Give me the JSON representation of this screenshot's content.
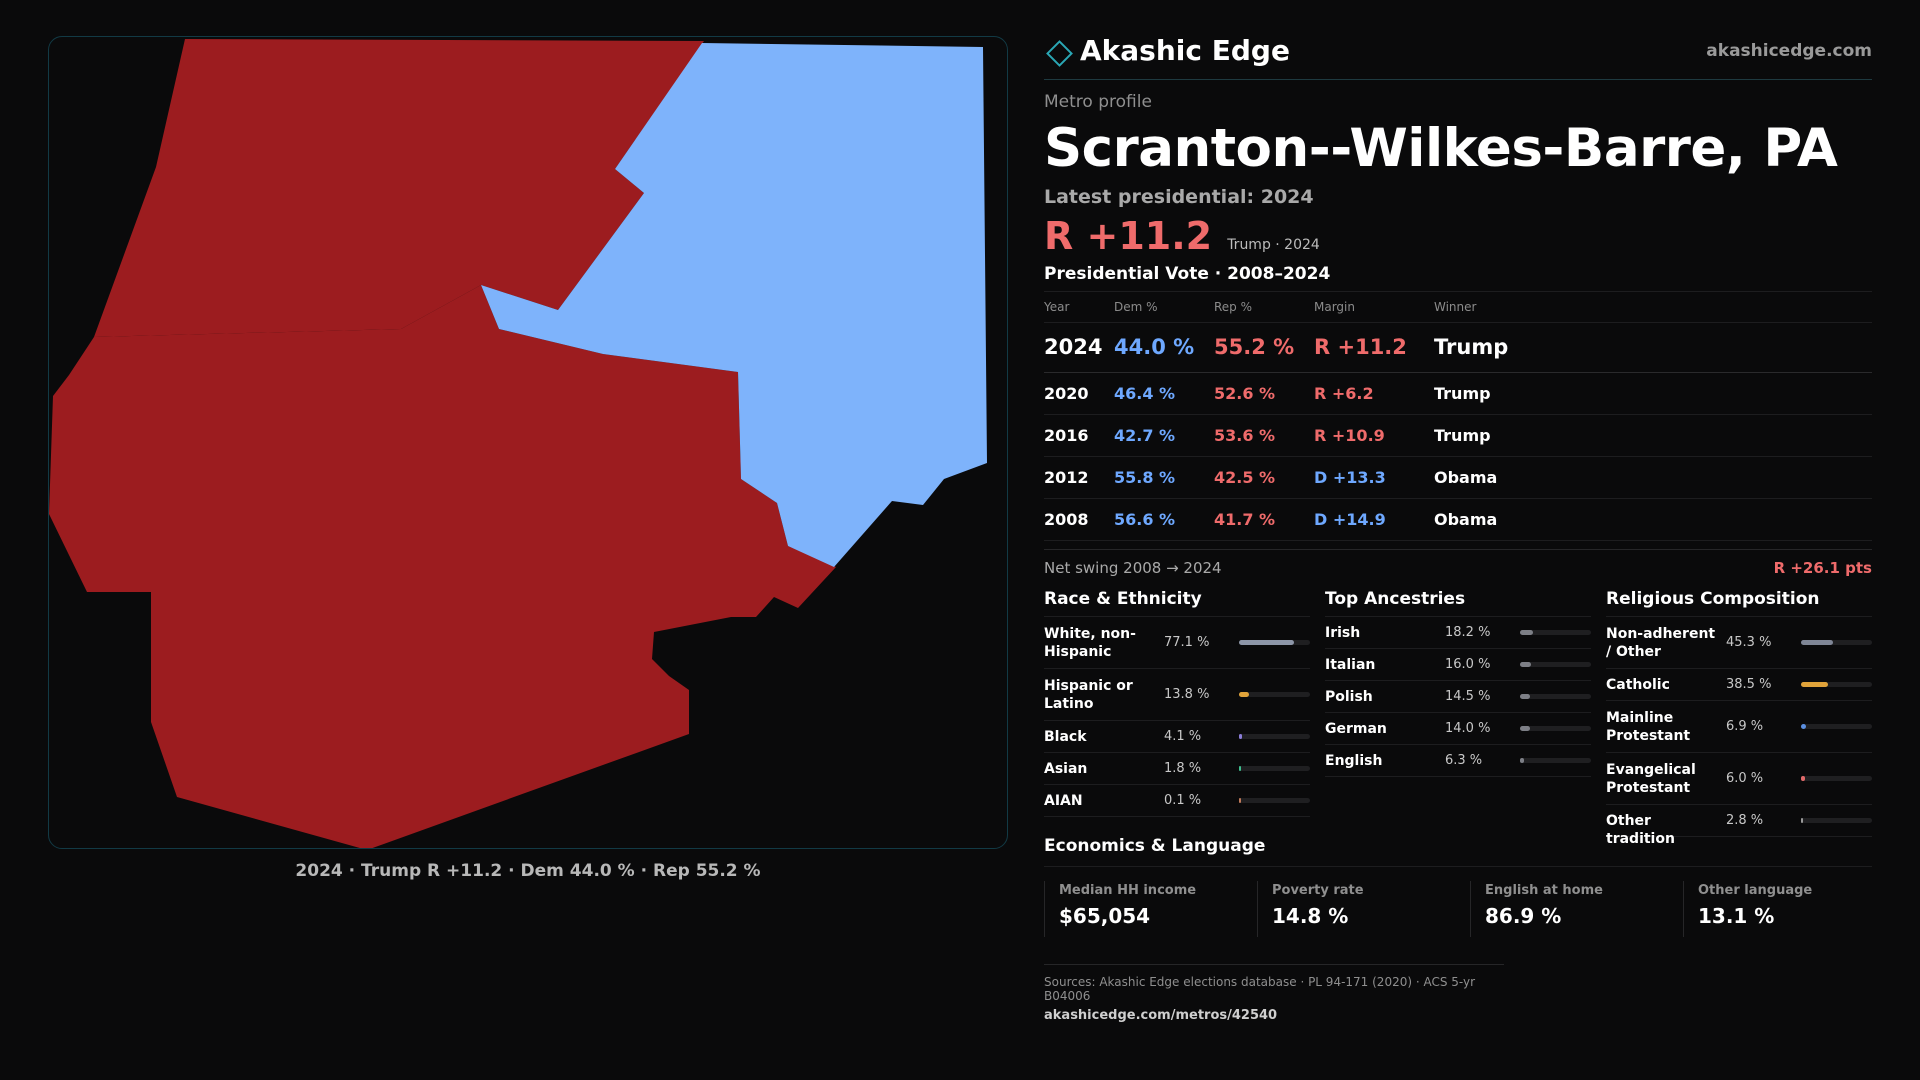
{
  "map": {
    "caption": "2024 · Trump R +11.2 · Dem 44.0 % · Rep 55.2 %",
    "colors": {
      "rep": "#9c1c1f",
      "dem": "#7eb3fb",
      "background": "#0a0a0b"
    },
    "counties": [
      {
        "fill": "rep"
      },
      {
        "fill": "rep"
      },
      {
        "fill": "dem"
      }
    ]
  },
  "brand": {
    "name": "Akashic Edge",
    "url": "akashicedge.com"
  },
  "profile": {
    "kicker": "Metro profile",
    "title": "Scranton--Wilkes-Barre, PA",
    "latest_label": "Latest presidential: 2024",
    "headline_margin": "R +11.2",
    "headline_note": "Trump · 2024"
  },
  "votes": {
    "title": "Presidential Vote · 2008–2024",
    "headers": {
      "year": "Year",
      "dem": "Dem %",
      "rep": "Rep %",
      "margin": "Margin",
      "winner": "Winner"
    },
    "rows": [
      {
        "year": "2024",
        "dem": "44.0 %",
        "rep": "55.2 %",
        "margin": "R +11.2",
        "party": "r",
        "winner": "Trump"
      },
      {
        "year": "2020",
        "dem": "46.4 %",
        "rep": "52.6 %",
        "margin": "R +6.2",
        "party": "r",
        "winner": "Trump"
      },
      {
        "year": "2016",
        "dem": "42.7 %",
        "rep": "53.6 %",
        "margin": "R +10.9",
        "party": "r",
        "winner": "Trump"
      },
      {
        "year": "2012",
        "dem": "55.8 %",
        "rep": "42.5 %",
        "margin": "D +13.3",
        "party": "d",
        "winner": "Obama"
      },
      {
        "year": "2008",
        "dem": "56.6 %",
        "rep": "41.7 %",
        "margin": "D +14.9",
        "party": "d",
        "winner": "Obama"
      }
    ],
    "swing_label": "Net swing 2008 → 2024",
    "swing_value": "R +26.1 pts"
  },
  "race": {
    "title": "Race & Ethnicity",
    "color": "#8d96a8",
    "items": [
      {
        "label": "White, non-Hispanic",
        "value": "77.1 %",
        "pct": 77.1,
        "color": "#8d96a8"
      },
      {
        "label": "Hispanic or Latino",
        "value": "13.8 %",
        "pct": 13.8,
        "color": "#e0a33a"
      },
      {
        "label": "Black",
        "value": "4.1 %",
        "pct": 4.1,
        "color": "#8b7dd8"
      },
      {
        "label": "Asian",
        "value": "1.8 %",
        "pct": 1.8,
        "color": "#3fbf8f"
      },
      {
        "label": "AIAN",
        "value": "0.1 %",
        "pct": 0.1,
        "color": "#c07a5a"
      }
    ]
  },
  "ancestry": {
    "title": "Top Ancestries",
    "items": [
      {
        "label": "Irish",
        "value": "18.2 %",
        "pct": 18.2,
        "color": "#7d7f86"
      },
      {
        "label": "Italian",
        "value": "16.0 %",
        "pct": 16.0,
        "color": "#7d7f86"
      },
      {
        "label": "Polish",
        "value": "14.5 %",
        "pct": 14.5,
        "color": "#7d7f86"
      },
      {
        "label": "German",
        "value": "14.0 %",
        "pct": 14.0,
        "color": "#7d7f86"
      },
      {
        "label": "English",
        "value": "6.3 %",
        "pct": 6.3,
        "color": "#7d7f86"
      }
    ]
  },
  "religion": {
    "title": "Religious Composition",
    "items": [
      {
        "label": "Non-adherent / Other",
        "value": "45.3 %",
        "pct": 45.3,
        "color": "#7f8696"
      },
      {
        "label": "Catholic",
        "value": "38.5 %",
        "pct": 38.5,
        "color": "#e0a33a"
      },
      {
        "label": "Mainline Protestant",
        "value": "6.9 %",
        "pct": 6.9,
        "color": "#5b8fe0"
      },
      {
        "label": "Evangelical Protestant",
        "value": "6.0 %",
        "pct": 6.0,
        "color": "#e06a6a"
      },
      {
        "label": "Other tradition",
        "value": "2.8 %",
        "pct": 2.8,
        "color": "#9a9a9a"
      }
    ]
  },
  "economics": {
    "title": "Economics & Language",
    "cells": [
      {
        "label": "Median HH income",
        "value": "$65,054"
      },
      {
        "label": "Poverty rate",
        "value": "14.8 %"
      },
      {
        "label": "English at home",
        "value": "86.9 %"
      },
      {
        "label": "Other language",
        "value": "13.1 %"
      }
    ]
  },
  "sources": {
    "text": "Sources: Akashic Edge elections database · PL 94-171 (2020) · ACS 5-yr B04006",
    "url": "akashicedge.com/metros/42540"
  }
}
